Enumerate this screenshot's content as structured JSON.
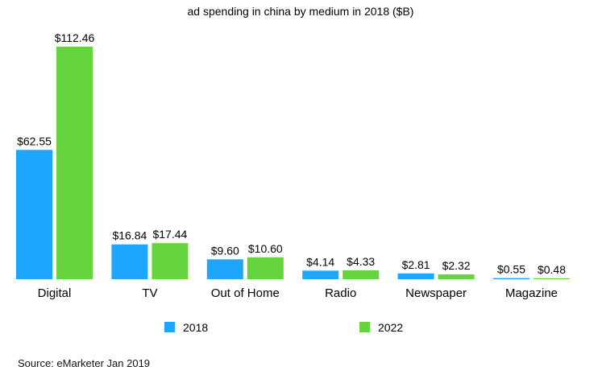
{
  "chart_data": {
    "type": "bar",
    "title": "ad spending in china by medium in 2018 ($B)",
    "categories": [
      "Digital",
      "TV",
      "Out of Home",
      "Radio",
      "Newspaper",
      "Magazine"
    ],
    "series": [
      {
        "name": "2018",
        "color": "#1ea5fc",
        "values": [
          62.55,
          16.84,
          9.6,
          4.14,
          2.81,
          0.55
        ],
        "labels": [
          "$62.55",
          "$16.84",
          "$9.60",
          "$4.14",
          "$2.81",
          "$0.55"
        ]
      },
      {
        "name": "2022",
        "color": "#66d43f",
        "values": [
          112.46,
          17.44,
          10.6,
          4.33,
          2.32,
          0.48
        ],
        "labels": [
          "$112.46",
          "$17.44",
          "$10.60",
          "$4.33",
          "$2.32",
          "$0.48"
        ]
      }
    ],
    "ylim": [
      0,
      112.46
    ],
    "grid": false,
    "legend": "bottom",
    "source": "Source: eMarketer Jan 2019"
  }
}
